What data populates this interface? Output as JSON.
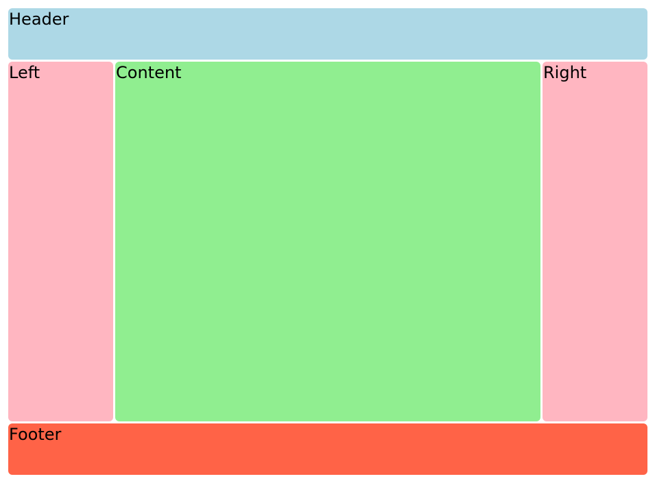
{
  "colors": {
    "header": "#ADD8E6",
    "left": "#FFB6C1",
    "content": "#90EE90",
    "right": "#FFB6C1",
    "footer": "#FF6347"
  },
  "header": {
    "label": "Header"
  },
  "left": {
    "label": "Left"
  },
  "content": {
    "label": "Content"
  },
  "right": {
    "label": "Right"
  },
  "footer": {
    "label": "Footer"
  }
}
